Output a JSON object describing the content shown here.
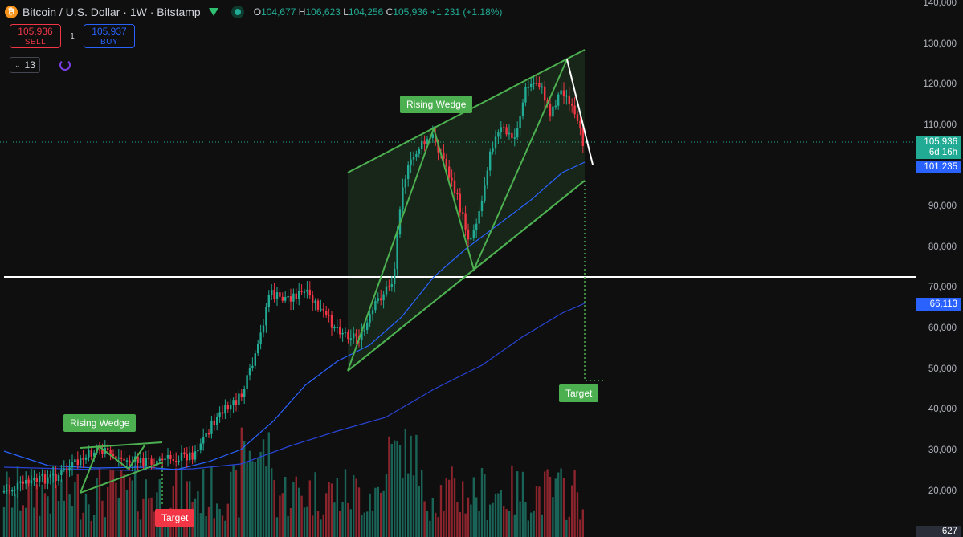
{
  "header": {
    "logo_char": "₿",
    "symbol": "Bitcoin / U.S. Dollar · 1W · Bitstamp",
    "ohlc": {
      "open_key": "O",
      "open": "104,677",
      "high_key": "H",
      "high": "106,623",
      "low_key": "L",
      "low": "104,256",
      "close_key": "C",
      "close": "105,936",
      "change": "+1,231 (+1.18%)"
    }
  },
  "trade": {
    "sell_price": "105,936",
    "sell_label": "SELL",
    "spread": "1",
    "buy_price": "105,937",
    "buy_label": "BUY"
  },
  "indicators": {
    "count": "13",
    "chevron": "⌄"
  },
  "price_axis": {
    "labels": [
      "140,000",
      "130,000",
      "120,000",
      "110,000",
      "90,000",
      "80,000",
      "70,000",
      "60,000",
      "50,000",
      "40,000",
      "30,000",
      "20,000"
    ],
    "current_price": "105,936",
    "countdown": "6d 16h",
    "ma_fast": "101,235",
    "ma_slow": "66,113",
    "volume": "627"
  },
  "annotations": {
    "wedge_label_1": "Rising Wedge",
    "target_1": "Target",
    "wedge_label_2": "Rising Wedge",
    "target_2": "Target"
  },
  "colors": {
    "bull": "#22ab94",
    "bear": "#f23645",
    "wedge": "#4caf50",
    "ma": "#2962ff",
    "support": "#ffffff"
  }
}
